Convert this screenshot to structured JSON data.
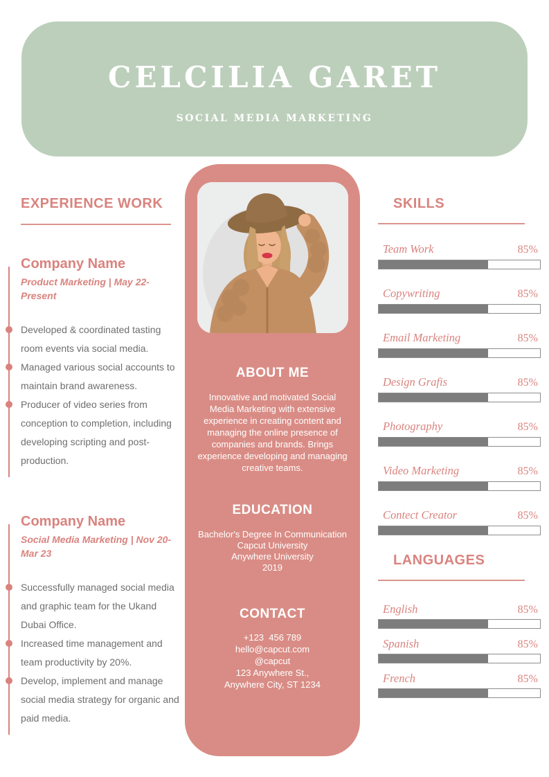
{
  "header": {
    "name": "CELCILIA GARET",
    "role": "SOCIAL MEDIA MARKETING"
  },
  "experience": {
    "heading": "EXPERIENCE WORK",
    "jobs": [
      {
        "company": "Company Name",
        "meta": "Product Marketing | May 22-Present",
        "bullets": [
          "Developed & coordinated tasting room events via social media.",
          "Managed various social accounts to maintain brand awareness.",
          "Producer of video series from conception to completion, including developing scripting and post-production."
        ]
      },
      {
        "company": "Company Name",
        "meta": "Social Media Marketing | Nov 20-Mar 23",
        "bullets": [
          "Successfully managed social media and graphic team for the Ukand Dubai Office.",
          "Increased time management and team productivity by 20%.",
          "Develop, implement and manage social media strategy for organic and paid media."
        ]
      }
    ]
  },
  "profile": {
    "photo": "portrait of woman in brown hat and knitted cardigan",
    "about": {
      "heading": "ABOUT ME",
      "text": "Innovative and motivated Social Media Marketing with extensive experience in creating content and managing the online presence of companies and brands. Brings experience developing and managing creative teams."
    },
    "education": {
      "heading": "EDUCATION",
      "lines": [
        "Bachelor's Degree In Communication",
        "Capcut University",
        "Anywhere University",
        "2019"
      ]
    },
    "contact": {
      "heading": "CONTACT",
      "lines": [
        "+123  456 789",
        "hello@capcut.com",
        "@capcut",
        "123 Anywhere St.,",
        "Anywhere City, ST 1234"
      ]
    }
  },
  "skills": {
    "heading": "SKILLS",
    "items": [
      {
        "label": "Team Work",
        "percent": "85%",
        "bar_fill": 68
      },
      {
        "label": "Copywriting",
        "percent": "85%",
        "bar_fill": 68
      },
      {
        "label": "Email Marketing",
        "percent": "85%",
        "bar_fill": 68
      },
      {
        "label": "Design Grafis",
        "percent": "85%",
        "bar_fill": 68
      },
      {
        "label": "Photography",
        "percent": "85%",
        "bar_fill": 68
      },
      {
        "label": "Video Marketing",
        "percent": "85%",
        "bar_fill": 68
      },
      {
        "label": "Contect Creator",
        "percent": "85%",
        "bar_fill": 68
      }
    ]
  },
  "languages": {
    "heading": "LANGUAGES",
    "items": [
      {
        "label": "English",
        "percent": "85%",
        "bar_fill": 68
      },
      {
        "label": "Spanish",
        "percent": "85%",
        "bar_fill": 68
      },
      {
        "label": "French",
        "percent": "85%",
        "bar_fill": 68
      }
    ]
  },
  "colors": {
    "header_green": "#bccfbb",
    "panel_pink": "#d98c85",
    "accent_pink": "#d9837e",
    "bar_fill_gray": "#7d7d7d",
    "bar_border_gray": "#8d8d8d",
    "body_text_gray": "#6e6e6e"
  }
}
